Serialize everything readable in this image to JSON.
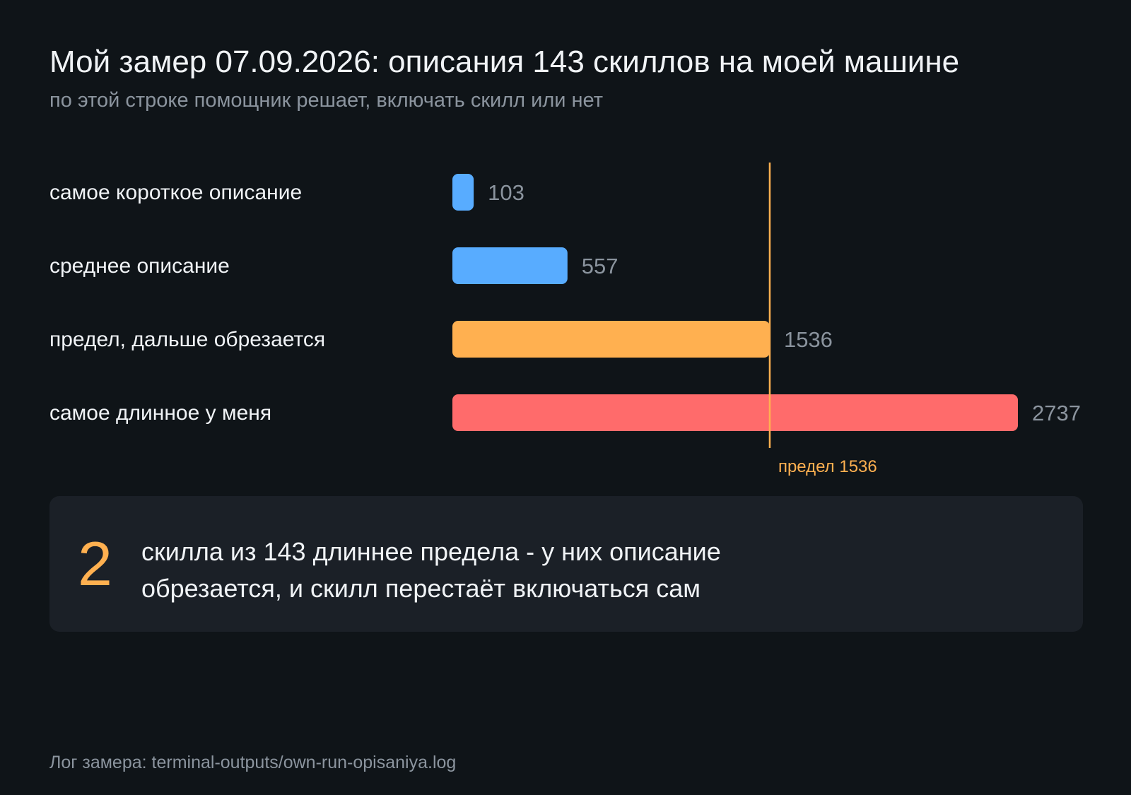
{
  "title": "Мой замер 07.09.2026: описания 143 скиллов на моей машине",
  "subtitle": "по этой строке помощник решает, включать скилл или нет",
  "chart_data": {
    "type": "bar",
    "orientation": "horizontal",
    "categories": [
      "самое короткое описание",
      "среднее описание",
      "предел, дальше обрезается",
      "самое длинное у меня"
    ],
    "values": [
      103,
      557,
      1536,
      2737
    ],
    "value_labels": [
      "103",
      "557",
      "1536",
      "2737"
    ],
    "colors": [
      "#58acff",
      "#58acff",
      "#ffb050",
      "#ff6b6b"
    ],
    "reference_line": {
      "value": 1536,
      "label": "предел 1536",
      "color": "#ffb050"
    },
    "xlim": [
      0,
      2737
    ],
    "grid": false
  },
  "callout": {
    "number": "2",
    "text": "скилла из 143 длиннее предела - у них описание обрезается, и скилл перестаёт включаться сам"
  },
  "footer": "Лог замера: terminal-outputs/own-run-opisaniya.log"
}
